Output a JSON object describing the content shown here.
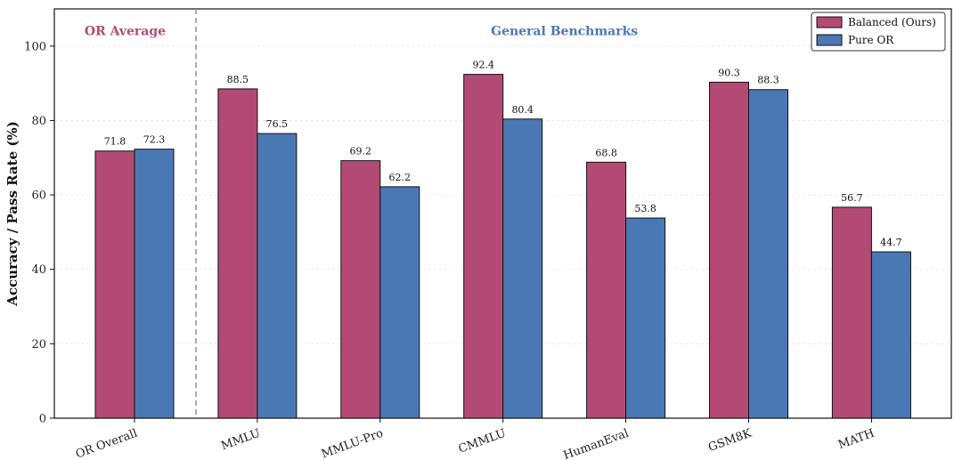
{
  "chart_data": {
    "type": "bar",
    "ylabel": "Accuracy / Pass Rate (%)",
    "xlabel": "",
    "ylim": [
      0,
      110
    ],
    "yticks": [
      0,
      20,
      40,
      60,
      80,
      100
    ],
    "grid": "horizontal",
    "categories": [
      "OR Overall",
      "MMLU",
      "MMLU-Pro",
      "CMMLU",
      "HumanEval",
      "GSM8K",
      "MATH"
    ],
    "series": [
      {
        "name": "Balanced (Ours)",
        "color": "#b34a74",
        "values": [
          71.8,
          88.5,
          69.2,
          92.4,
          68.8,
          90.3,
          56.7
        ]
      },
      {
        "name": "Pure OR",
        "color": "#4a78b4",
        "values": [
          72.3,
          76.5,
          62.2,
          80.4,
          53.8,
          88.3,
          44.7
        ]
      }
    ],
    "value_labels": [
      [
        "71.8",
        "88.5",
        "69.2",
        "92.4",
        "68.8",
        "90.3",
        "56.7"
      ],
      [
        "72.3",
        "76.5",
        "62.2",
        "80.4",
        "53.8",
        "88.3",
        "44.7"
      ]
    ],
    "annotations": [
      {
        "text": "OR Average",
        "color": "#b34a74"
      },
      {
        "text": "General Benchmarks",
        "color": "#4a78b4"
      }
    ],
    "divider_after_category": 0,
    "legend_position": "top-right"
  }
}
